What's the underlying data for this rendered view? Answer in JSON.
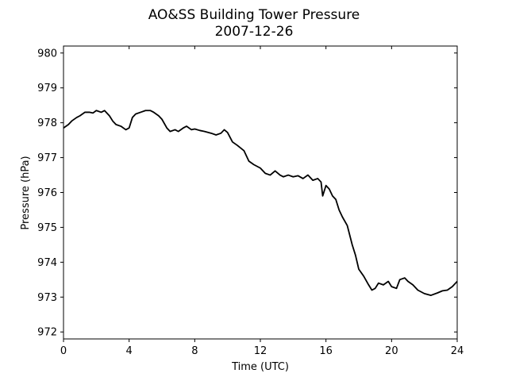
{
  "chart_data": {
    "type": "line",
    "title": "AO&SS Building Tower Pressure",
    "subtitle": "2007-12-26",
    "xlabel": "Time (UTC)",
    "ylabel": "Pressure (hPa)",
    "xlim": [
      0,
      24
    ],
    "ylim": [
      971.8,
      980.2
    ],
    "xticks": [
      0,
      4,
      8,
      12,
      16,
      20,
      24
    ],
    "yticks": [
      972,
      973,
      974,
      975,
      976,
      977,
      978,
      979,
      980
    ],
    "grid": false,
    "legend": "none",
    "line_color": "#000000",
    "series": [
      {
        "x": [
          0,
          0.3,
          0.5,
          0.8,
          1.0,
          1.3,
          1.6,
          1.8,
          2.0,
          2.3,
          2.5,
          2.8,
          3.0,
          3.2,
          3.5,
          3.8,
          4.0,
          4.2,
          4.4,
          4.7,
          5.0,
          5.3,
          5.5,
          5.8,
          6.0,
          6.3,
          6.5,
          6.8,
          7.0,
          7.3,
          7.5,
          7.8,
          8.0,
          8.3,
          8.6,
          9.0,
          9.3,
          9.6,
          9.8,
          10.0,
          10.3,
          10.6,
          11.0,
          11.3,
          11.6,
          12.0,
          12.3,
          12.6,
          12.9,
          13.2,
          13.4,
          13.7,
          14.0,
          14.3,
          14.6,
          14.9,
          15.2,
          15.5,
          15.7,
          15.8,
          16.0,
          16.2,
          16.4,
          16.6,
          16.8,
          17.0,
          17.3,
          17.6,
          17.8,
          18.0,
          18.3,
          18.6,
          18.8,
          19.0,
          19.2,
          19.5,
          19.8,
          20.0,
          20.3,
          20.5,
          20.8,
          21.0,
          21.3,
          21.6,
          22.0,
          22.4,
          22.8,
          23.1,
          23.4,
          23.7,
          24.0
        ],
        "values": [
          977.85,
          977.95,
          978.05,
          978.15,
          978.2,
          978.3,
          978.3,
          978.28,
          978.35,
          978.3,
          978.35,
          978.2,
          978.05,
          977.95,
          977.9,
          977.8,
          977.85,
          978.15,
          978.25,
          978.3,
          978.35,
          978.35,
          978.3,
          978.2,
          978.1,
          977.85,
          977.75,
          977.8,
          977.75,
          977.85,
          977.9,
          977.8,
          977.82,
          977.78,
          977.75,
          977.7,
          977.65,
          977.7,
          977.8,
          977.72,
          977.45,
          977.35,
          977.2,
          976.9,
          976.8,
          976.7,
          976.55,
          976.5,
          976.62,
          976.5,
          976.45,
          976.5,
          976.45,
          976.48,
          976.4,
          976.5,
          976.35,
          976.4,
          976.3,
          975.9,
          976.2,
          976.1,
          975.9,
          975.8,
          975.5,
          975.3,
          975.05,
          974.5,
          974.2,
          973.8,
          973.6,
          973.35,
          973.2,
          973.25,
          973.4,
          973.35,
          973.45,
          973.3,
          973.25,
          973.5,
          973.55,
          973.45,
          973.35,
          973.2,
          973.1,
          973.05,
          973.12,
          973.18,
          973.2,
          973.3,
          973.45
        ]
      }
    ]
  }
}
